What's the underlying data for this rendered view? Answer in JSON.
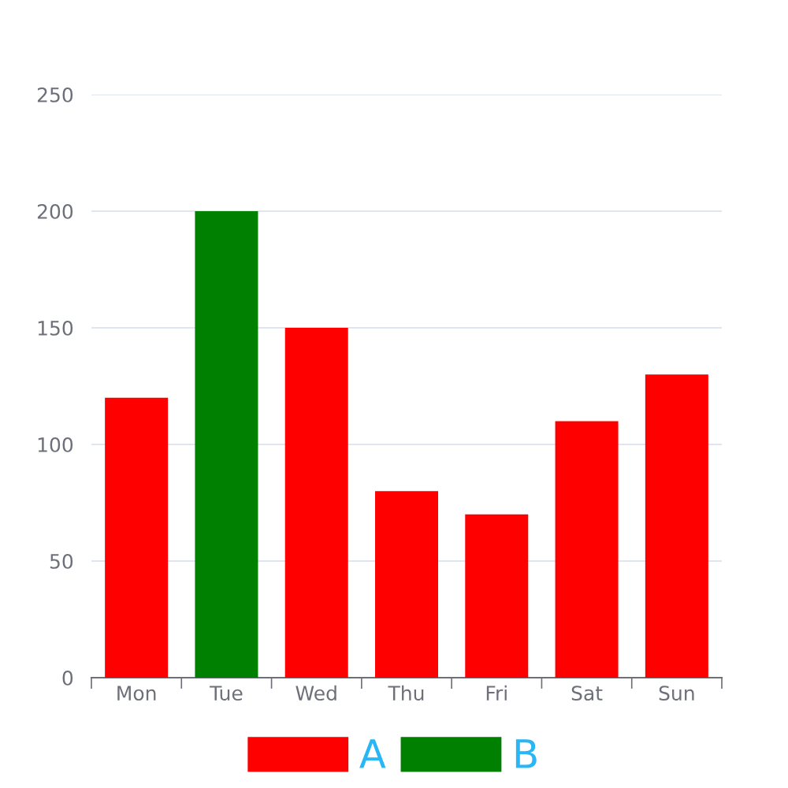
{
  "chart_data": {
    "type": "bar",
    "stacked": true,
    "categories": [
      "Mon",
      "Tue",
      "Wed",
      "Thu",
      "Fri",
      "Sat",
      "Sun"
    ],
    "series": [
      {
        "name": "A",
        "color": "#ff0000",
        "values": [
          120,
          null,
          150,
          80,
          70,
          110,
          130
        ]
      },
      {
        "name": "B",
        "color": "#008000",
        "values": [
          null,
          200,
          null,
          null,
          null,
          null,
          null
        ]
      }
    ],
    "ylim": [
      0,
      250
    ],
    "yticks": [
      0,
      50,
      100,
      150,
      200,
      250
    ],
    "grid": "y",
    "legend": "bottom"
  }
}
